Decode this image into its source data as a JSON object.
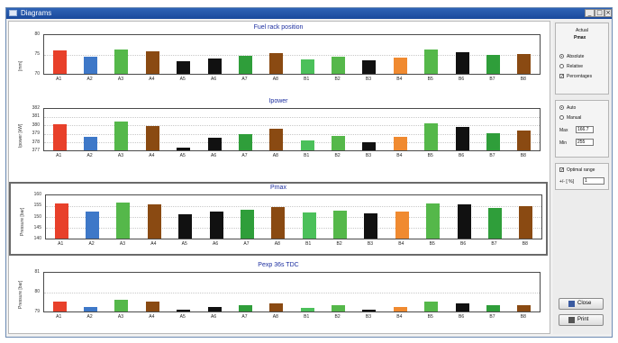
{
  "window": {
    "title": "Diagrams",
    "min": "_",
    "max": "□",
    "close": "×"
  },
  "categories": [
    "A1",
    "A2",
    "A3",
    "A4",
    "A5",
    "A6",
    "A7",
    "A8",
    "B1",
    "B2",
    "B3",
    "B4",
    "B5",
    "B6",
    "B7",
    "B8"
  ],
  "colors": [
    "#e8402a",
    "#3e78c8",
    "#55b84a",
    "#8a4a12",
    "#111111",
    "#111111",
    "#2f9e3a",
    "#8a4a12",
    "#4bc05a",
    "#55b84a",
    "#111111",
    "#f08a30",
    "#55b84a",
    "#111111",
    "#2f9e3a",
    "#8a4a12"
  ],
  "chart_data": [
    {
      "type": "bar",
      "title": "Fuel rack position",
      "ylabel": "[mm]",
      "yticks": [
        "80",
        "75",
        "70"
      ],
      "ylim": [
        70,
        80
      ],
      "values": [
        76.1,
        74.4,
        76.3,
        75.8,
        73.3,
        74.0,
        74.7,
        75.4,
        73.8,
        74.5,
        73.6,
        74.3,
        76.2,
        75.7,
        74.9,
        75.2
      ]
    },
    {
      "type": "bar",
      "title": "Ipower",
      "ylabel": "Ipower [kW]",
      "yticks": [
        "382",
        "381",
        "380",
        "379",
        "378",
        "377"
      ],
      "ylim": [
        377,
        382
      ],
      "values": [
        380.2,
        378.6,
        380.5,
        379.9,
        377.3,
        378.5,
        379.0,
        379.6,
        378.2,
        378.7,
        378.0,
        378.6,
        380.3,
        379.8,
        379.1,
        379.4
      ]
    },
    {
      "type": "bar",
      "title": "Pmax",
      "ylabel": "Pressure [bar]",
      "yticks": [
        "160",
        "155",
        "150",
        "145",
        "140"
      ],
      "ylim": [
        140,
        162
      ],
      "values": [
        158.0,
        153.9,
        158.4,
        157.6,
        152.3,
        153.6,
        154.6,
        156.2,
        153.2,
        154.0,
        152.9,
        153.8,
        158.1,
        157.4,
        155.5,
        156.3
      ]
    },
    {
      "type": "bar",
      "title": "Pexp 36s TDC",
      "ylabel": "Pressure [bar]",
      "yticks": [
        "81",
        "80",
        "79"
      ],
      "ylim": [
        78.6,
        81
      ],
      "values": [
        79.2,
        78.9,
        79.3,
        79.2,
        78.7,
        78.9,
        79.0,
        79.1,
        78.8,
        79.0,
        78.7,
        78.9,
        79.2,
        79.1,
        79.0,
        79.0
      ]
    }
  ],
  "side": {
    "actual": "Actual",
    "current": "Pmax",
    "absolute": "Absolute",
    "relative": "Relative",
    "percentages": "Percentages",
    "auto": "Auto",
    "manual": "Manual",
    "max_label": "Max",
    "max_value": "166.7",
    "min_label": "Min",
    "min_value": "255",
    "optimal": "Optimal range",
    "tol_label": "+/- [ %]",
    "tol_value": "1",
    "close": "Close",
    "print": "Print"
  }
}
